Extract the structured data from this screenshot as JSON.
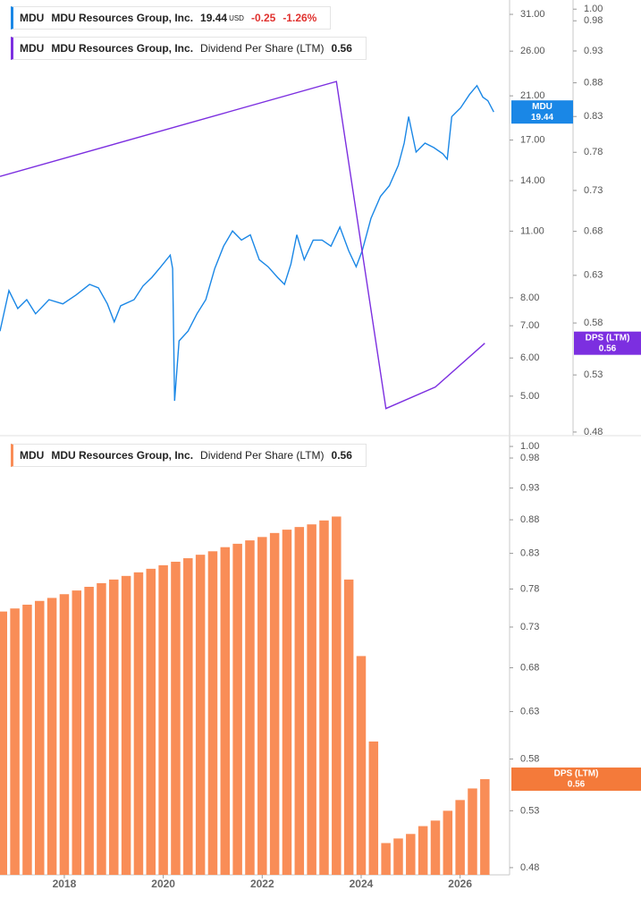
{
  "chart_data": [
    {
      "type": "line",
      "ticker": "MDU",
      "company": "MDU Resources Group, Inc.",
      "currency": "USD",
      "change": -0.25,
      "change_pct": "-1.26%",
      "flag_label": "DPS (LTM)",
      "log_scale": true,
      "xlim": [
        2016.7,
        2027.0
      ],
      "ylim": [
        4.14,
        33.2
      ],
      "yticks": [
        {
          "value": 5,
          "label": "5.00"
        },
        {
          "value": 6,
          "label": "6.00"
        },
        {
          "value": 7,
          "label": "7.00"
        },
        {
          "value": 8,
          "label": "8.00"
        },
        {
          "value": 11,
          "label": "11.00"
        },
        {
          "value": 14,
          "label": "14.00"
        },
        {
          "value": 17,
          "label": "17.00"
        },
        {
          "value": 21,
          "label": "21.00"
        },
        {
          "value": 26,
          "label": "26.00"
        },
        {
          "value": 31,
          "label": "31.00"
        }
      ],
      "y2lim": [
        0.477,
        1.016
      ],
      "y2ticks": [
        0.48,
        0.53,
        0.58,
        0.63,
        0.68,
        0.73,
        0.78,
        0.83,
        0.88,
        0.93,
        0.98,
        {
          "value": 1,
          "label": "1.00"
        }
      ],
      "series": [
        {
          "name": "MDU",
          "color": "#1a87e6",
          "x": [
            2016.7,
            2016.88,
            2017.06,
            2017.24,
            2017.42,
            2017.69,
            2017.97,
            2018.24,
            2018.51,
            2018.69,
            2018.87,
            2019.01,
            2019.14,
            2019.41,
            2019.59,
            2019.77,
            2019.95,
            2020.14,
            2020.19,
            2020.23,
            2020.32,
            2020.5,
            2020.68,
            2020.86,
            2021.04,
            2021.22,
            2021.4,
            2021.58,
            2021.76,
            2021.94,
            2022.12,
            2022.31,
            2022.45,
            2022.58,
            2022.7,
            2022.85,
            2023.03,
            2023.21,
            2023.39,
            2023.57,
            2023.75,
            2023.9,
            2024.02,
            2024.2,
            2024.39,
            2024.57,
            2024.75,
            2024.87,
            2024.96,
            2025.11,
            2025.29,
            2025.47,
            2025.65,
            2025.74,
            2025.83,
            2026.01,
            2026.19,
            2026.34,
            2026.46,
            2026.56,
            2026.68
          ],
          "values": [
            6.82,
            8.28,
            7.6,
            7.93,
            7.41,
            7.93,
            7.77,
            8.11,
            8.53,
            8.39,
            7.77,
            7.13,
            7.7,
            7.93,
            8.46,
            8.82,
            9.28,
            9.81,
            9.2,
            4.89,
            6.51,
            6.82,
            7.41,
            7.93,
            9.2,
            10.24,
            11.01,
            10.54,
            10.81,
            9.6,
            9.28,
            8.82,
            8.53,
            9.4,
            10.81,
            9.6,
            10.54,
            10.54,
            10.24,
            11.22,
            10.01,
            9.28,
            10.01,
            11.7,
            12.99,
            13.67,
            15.06,
            16.75,
            19.01,
            16.05,
            16.75,
            16.4,
            15.92,
            15.52,
            19.01,
            19.83,
            21.14,
            22.05,
            20.87,
            20.52,
            19.44
          ]
        },
        {
          "name": "Dividend Per Share (LTM)",
          "color": "#7c2fe0",
          "axis": "y2",
          "x": [
            2016.7,
            2023.5,
            2024.5,
            2025.5,
            2026.5
          ],
          "values": [
            0.748,
            0.882,
            0.5,
            0.519,
            0.56
          ]
        }
      ]
    },
    {
      "type": "bar",
      "ticker": "MDU",
      "company": "MDU Resources Group, Inc.",
      "flag_label": "DPS (LTM)",
      "log_scale": true,
      "xlim": [
        2016.7,
        2027.0
      ],
      "xticks": [
        2018,
        2020,
        2022,
        2024,
        2026
      ],
      "ylim": [
        0.474,
        1.019
      ],
      "yticks": [
        0.48,
        0.53,
        0.58,
        0.63,
        0.68,
        0.73,
        0.78,
        0.83,
        0.88,
        0.93,
        0.98,
        {
          "value": 1,
          "label": "1.00"
        }
      ],
      "series": [
        {
          "name": "Dividend Per Share (LTM)",
          "color": "#f98d57",
          "x": [
            2016.75,
            2017,
            2017.25,
            2017.5,
            2017.75,
            2018,
            2018.25,
            2018.5,
            2018.75,
            2019,
            2019.25,
            2019.5,
            2019.75,
            2020,
            2020.25,
            2020.5,
            2020.75,
            2021,
            2021.25,
            2021.5,
            2021.75,
            2022,
            2022.25,
            2022.5,
            2022.75,
            2023,
            2023.25,
            2023.5,
            2023.75,
            2024,
            2024.25,
            2024.5,
            2024.75,
            2025,
            2025.25,
            2025.5,
            2025.75,
            2026,
            2026.25,
            2026.5
          ],
          "values": [
            0.75,
            0.754,
            0.759,
            0.764,
            0.768,
            0.773,
            0.778,
            0.783,
            0.788,
            0.793,
            0.798,
            0.803,
            0.808,
            0.813,
            0.818,
            0.823,
            0.828,
            0.833,
            0.839,
            0.844,
            0.849,
            0.854,
            0.86,
            0.865,
            0.869,
            0.873,
            0.879,
            0.885,
            0.793,
            0.694,
            0.598,
            0.501,
            0.505,
            0.509,
            0.516,
            0.521,
            0.53,
            0.54,
            0.551,
            0.56
          ]
        }
      ]
    }
  ]
}
